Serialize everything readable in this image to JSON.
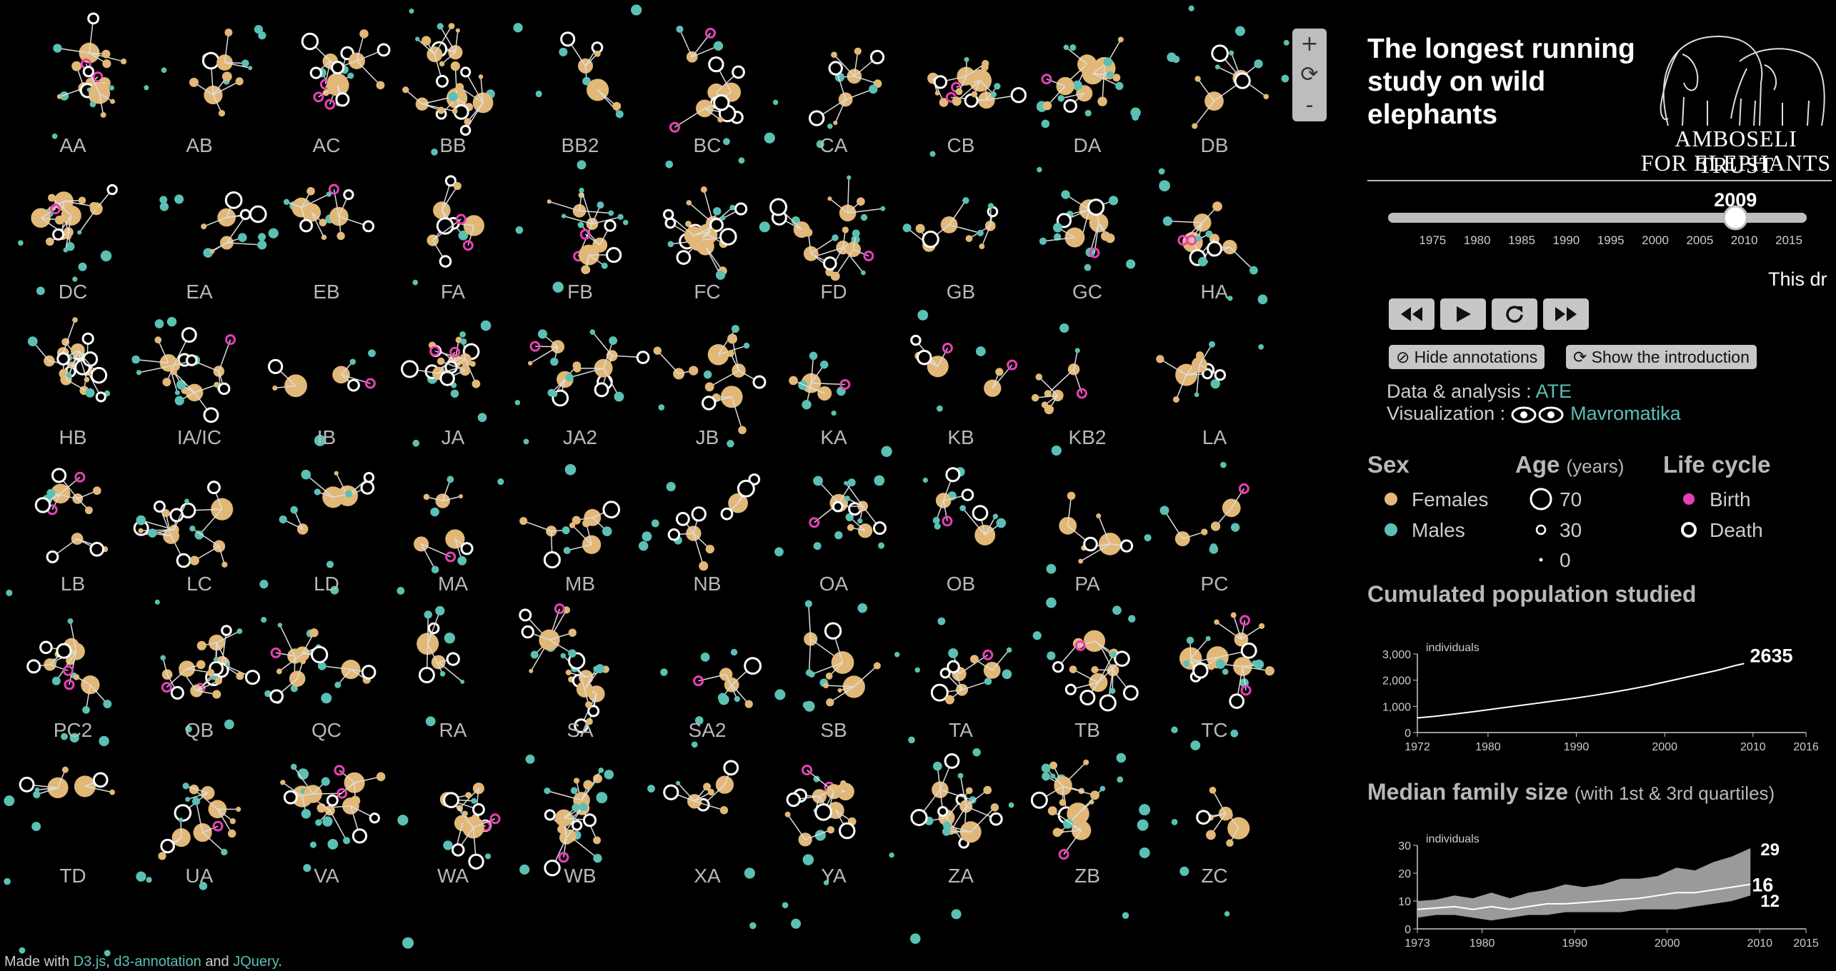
{
  "families": [
    "AA",
    "AB",
    "AC",
    "BB",
    "BB2",
    "BC",
    "CA",
    "CB",
    "DA",
    "DB",
    "DC",
    "EA",
    "EB",
    "FA",
    "FB",
    "FC",
    "FD",
    "GB",
    "GC",
    "HA",
    "HB",
    "IA/IC",
    "IB",
    "JA",
    "JA2",
    "JB",
    "KA",
    "KB",
    "KB2",
    "LA",
    "LB",
    "LC",
    "LD",
    "MA",
    "MB",
    "NB",
    "OA",
    "OB",
    "PA",
    "PC",
    "PC2",
    "QB",
    "QC",
    "RA",
    "SA",
    "SA2",
    "SB",
    "TA",
    "TB",
    "TC",
    "TD",
    "UA",
    "VA",
    "WA",
    "WB",
    "XA",
    "YA",
    "ZA",
    "ZB",
    "ZC"
  ],
  "colors": {
    "female": "#e2b878",
    "male": "#5bc0b4",
    "birth": "#e83fb6",
    "death": "#ffffff",
    "background": "#000000",
    "slider": "#bdbdbd",
    "link": "#5bc0b4"
  },
  "zoom": {
    "in": "+",
    "reset": "⟳",
    "out": "-"
  },
  "header": {
    "title": "The longest running study on wild elephants",
    "logo_line1": "AMBOSELI TRUST",
    "logo_line2": "FOR ELEPHANTS",
    "logo_icon": "elephants-drawing"
  },
  "slider": {
    "current_year": "2009",
    "value": 2009,
    "min": 1970,
    "max": 2017,
    "ticks": [
      "1975",
      "1980",
      "1985",
      "1990",
      "1995",
      "2000",
      "2005",
      "2010",
      "2015"
    ]
  },
  "intro_text": "This dr",
  "controls": {
    "rewind": "rewind-icon",
    "play": "play-icon",
    "replay": "replay-icon",
    "forward": "fast-forward-icon"
  },
  "buttons": {
    "hide_annotations": "Hide annotations",
    "show_intro": "Show the introduction"
  },
  "credits": {
    "data_label": "Data & analysis :",
    "data_link": "ATE",
    "viz_label": "Visualization :",
    "viz_link": "Mavromatika"
  },
  "legend": {
    "sex_title": "Sex",
    "female": "Females",
    "male": "Males",
    "age_title": "Age",
    "age_unit": "(years)",
    "ages": [
      "70",
      "30",
      "0"
    ],
    "lifecycle_title": "Life cycle",
    "birth": "Birth",
    "death": "Death"
  },
  "population_chart": {
    "title": "Cumulated population studied",
    "unit": "individuals",
    "y_ticks": [
      "0",
      "1,000",
      "2,000",
      "3,000"
    ],
    "x_ticks": [
      "1972",
      "1980",
      "1990",
      "2000",
      "2010",
      "2016"
    ],
    "last_value": "2635"
  },
  "family_size_chart": {
    "title": "Median family size",
    "subtitle": "(with 1st & 3rd quartiles)",
    "unit": "individuals",
    "y_ticks": [
      "0",
      "10",
      "20",
      "30"
    ],
    "x_ticks": [
      "1973",
      "1980",
      "1990",
      "2000",
      "2010",
      "2015"
    ],
    "q3_label": "29",
    "median_label": "16",
    "q1_label": "12"
  },
  "chart_data": [
    {
      "type": "line",
      "title": "Cumulated population studied",
      "ylabel": "individuals",
      "xlim": [
        1972,
        2016
      ],
      "ylim": [
        0,
        3000
      ],
      "x": [
        1972,
        1974,
        1976,
        1978,
        1980,
        1982,
        1984,
        1986,
        1988,
        1990,
        1992,
        1994,
        1996,
        1998,
        2000,
        2002,
        2004,
        2006,
        2008,
        2009
      ],
      "y": [
        560,
        620,
        700,
        780,
        870,
        960,
        1050,
        1140,
        1230,
        1320,
        1420,
        1530,
        1650,
        1780,
        1930,
        2080,
        2230,
        2380,
        2560,
        2635
      ]
    },
    {
      "type": "area",
      "title": "Median family size",
      "subtitle": "(with 1st & 3rd quartiles)",
      "ylabel": "individuals",
      "xlim": [
        1973,
        2015
      ],
      "ylim": [
        0,
        30
      ],
      "x": [
        1973,
        1975,
        1977,
        1979,
        1981,
        1983,
        1985,
        1987,
        1989,
        1991,
        1993,
        1995,
        1997,
        1999,
        2001,
        2003,
        2005,
        2007,
        2009
      ],
      "series": [
        {
          "name": "3rd quartile",
          "values": [
            10,
            10.5,
            12,
            11,
            13,
            11,
            13,
            14,
            16,
            15,
            16,
            18,
            18,
            19,
            22,
            21,
            24,
            26,
            29
          ]
        },
        {
          "name": "median",
          "values": [
            7,
            7.5,
            8,
            7,
            8,
            7,
            8,
            9,
            9,
            9.5,
            10,
            10.5,
            11,
            12,
            13,
            13,
            14,
            15,
            16
          ]
        },
        {
          "name": "1st quartile",
          "values": [
            4,
            5,
            5,
            4,
            3,
            4,
            5,
            5,
            6,
            6,
            6,
            6,
            7,
            7,
            7,
            8,
            9,
            10,
            12
          ]
        }
      ]
    }
  ],
  "footer": {
    "prefix": "Made with",
    "d3": "D3.js",
    "sep1": ",",
    "annotation": "d3-annotation",
    "and": "and",
    "jquery": "JQuery",
    "suffix": "."
  }
}
